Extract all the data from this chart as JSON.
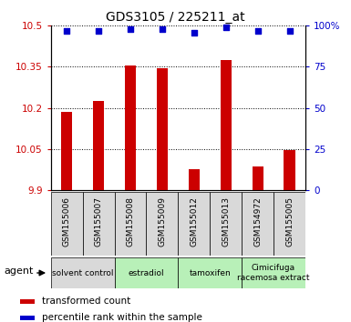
{
  "title": "GDS3105 / 225211_at",
  "samples": [
    "GSM155006",
    "GSM155007",
    "GSM155008",
    "GSM155009",
    "GSM155012",
    "GSM155013",
    "GSM154972",
    "GSM155005"
  ],
  "bar_values": [
    10.185,
    10.225,
    10.355,
    10.345,
    9.975,
    10.375,
    9.985,
    10.045
  ],
  "percentile_values": [
    97,
    97,
    98,
    98,
    96,
    99,
    97,
    97
  ],
  "bar_color": "#cc0000",
  "dot_color": "#0000cc",
  "ylim_left": [
    9.9,
    10.5
  ],
  "ylim_right": [
    0,
    100
  ],
  "yticks_left": [
    9.9,
    10.05,
    10.2,
    10.35,
    10.5
  ],
  "ytick_labels_left": [
    "9.9",
    "10.05",
    "10.2",
    "10.35",
    "10.5"
  ],
  "yticks_right": [
    0,
    25,
    50,
    75,
    100
  ],
  "ytick_labels_right": [
    "0",
    "25",
    "50",
    "75",
    "100%"
  ],
  "groups": [
    {
      "label": "solvent control",
      "start": 0,
      "end": 1,
      "color": "#d9d9d9"
    },
    {
      "label": "estradiol",
      "start": 2,
      "end": 3,
      "color": "#b8f0b8"
    },
    {
      "label": "tamoxifen",
      "start": 4,
      "end": 5,
      "color": "#b8f0b8"
    },
    {
      "label": "Cimicifuga\nracemosa extract",
      "start": 6,
      "end": 7,
      "color": "#b8f0b8"
    }
  ],
  "agent_label": "agent",
  "legend_bar_label": "transformed count",
  "legend_dot_label": "percentile rank within the sample",
  "bar_color_legend": "#cc0000",
  "dot_color_legend": "#0000cc",
  "bar_width": 0.35,
  "title_fontsize": 10,
  "plot_bg_color": "#ffffff",
  "sample_box_color": "#d9d9d9"
}
